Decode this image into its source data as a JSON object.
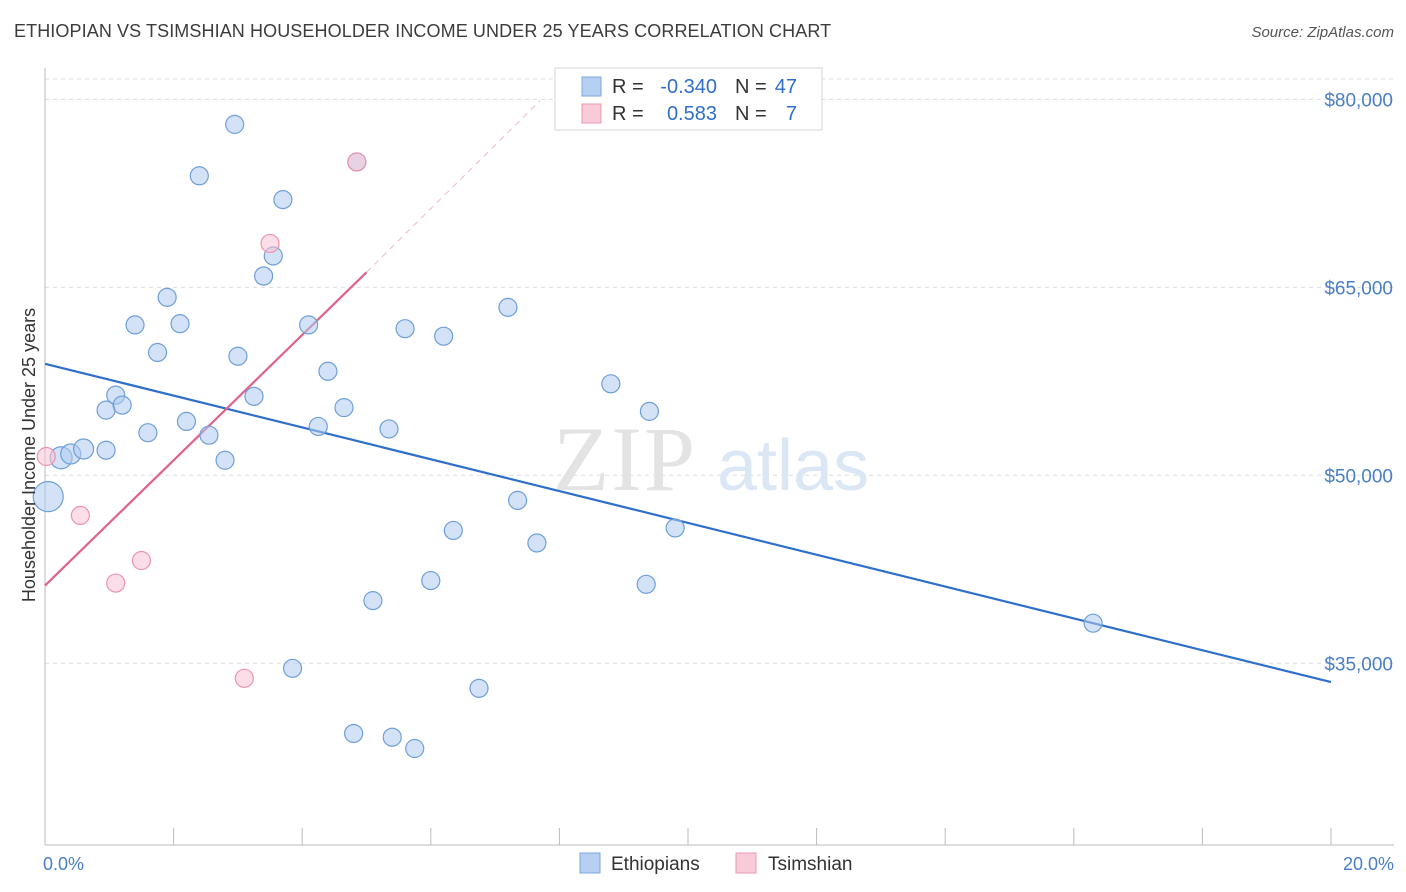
{
  "title": "ETHIOPIAN VS TSIMSHIAN HOUSEHOLDER INCOME UNDER 25 YEARS CORRELATION CHART",
  "source": "Source: ZipAtlas.com",
  "watermark": {
    "zip": "ZIP",
    "atlas": "atlas"
  },
  "legend_stats": {
    "r_label": "R =",
    "n_label": "N =",
    "rows": [
      {
        "series": "Ethiopians",
        "r": "-0.340",
        "n": "47"
      },
      {
        "series": "Tsimshian",
        "r": "0.583",
        "n": "7"
      }
    ]
  },
  "chart_data": {
    "type": "scatter",
    "ylabel": "Householder Income Under 25 years",
    "xlim": [
      0,
      20
    ],
    "ylim": [
      20500,
      82500
    ],
    "x_tick_labels": [
      {
        "value": 0,
        "label": "0.0%"
      },
      {
        "value": 20,
        "label": "20.0%"
      }
    ],
    "y_ticks": [
      {
        "value": 80000,
        "label": "$80,000"
      },
      {
        "value": 65000,
        "label": "$65,000"
      },
      {
        "value": 50000,
        "label": "$50,000"
      },
      {
        "value": 35000,
        "label": "$35,000"
      }
    ],
    "colors": {
      "Ethiopians": {
        "fill": "#aecbf0",
        "stroke": "#6f9fd8",
        "line": "#2f6fcb",
        "legend_fill": "#b5d0f3",
        "legend_stroke": "#7ea6de"
      },
      "Tsimshian": {
        "fill": "#f8c3d3",
        "stroke": "#ec94ad",
        "line": "#e0628a",
        "legend_fill": "#f9cad8",
        "legend_stroke": "#ec9ab2"
      },
      "tick_text": "#4a7ec9",
      "grid": "#dddddd"
    },
    "series": [
      {
        "name": "Ethiopians",
        "points": [
          [
            0.05,
            48300,
            15
          ],
          [
            0.25,
            51400,
            11
          ],
          [
            0.4,
            51700,
            10
          ],
          [
            0.6,
            52100,
            10
          ],
          [
            0.95,
            55200,
            9
          ],
          [
            0.95,
            52000,
            9
          ],
          [
            1.1,
            56400,
            9
          ],
          [
            1.2,
            55600,
            9
          ],
          [
            1.4,
            62000,
            9
          ],
          [
            1.6,
            53400,
            9
          ],
          [
            1.75,
            59800,
            9
          ],
          [
            1.9,
            64200,
            9
          ],
          [
            2.1,
            62100,
            9
          ],
          [
            2.2,
            54300,
            9
          ],
          [
            2.4,
            73900,
            9
          ],
          [
            2.55,
            53200,
            9
          ],
          [
            2.8,
            51200,
            9
          ],
          [
            2.95,
            78000,
            9
          ],
          [
            3.0,
            59500,
            9
          ],
          [
            3.25,
            56300,
            9
          ],
          [
            3.4,
            65900,
            9
          ],
          [
            3.55,
            67500,
            9
          ],
          [
            3.7,
            72000,
            9
          ],
          [
            3.85,
            34600,
            9
          ],
          [
            4.1,
            62000,
            9
          ],
          [
            4.25,
            53900,
            9
          ],
          [
            4.4,
            58300,
            9
          ],
          [
            4.65,
            55400,
            9
          ],
          [
            4.8,
            29400,
            9
          ],
          [
            4.85,
            75000,
            9
          ],
          [
            5.1,
            40000,
            9
          ],
          [
            5.35,
            53700,
            9
          ],
          [
            5.4,
            29100,
            9
          ],
          [
            5.6,
            61700,
            9
          ],
          [
            5.75,
            28200,
            9
          ],
          [
            6.0,
            41600,
            9
          ],
          [
            6.2,
            61100,
            9
          ],
          [
            6.35,
            45600,
            9
          ],
          [
            6.75,
            33000,
            9
          ],
          [
            7.2,
            63400,
            9
          ],
          [
            7.35,
            48000,
            9
          ],
          [
            7.65,
            44600,
            9
          ],
          [
            8.8,
            57300,
            9
          ],
          [
            9.35,
            41300,
            9
          ],
          [
            9.4,
            55100,
            9
          ],
          [
            9.8,
            45800,
            9
          ],
          [
            16.3,
            38200,
            9
          ]
        ]
      },
      {
        "name": "Tsimshian",
        "points": [
          [
            0.02,
            51500,
            9
          ],
          [
            0.55,
            46800,
            9
          ],
          [
            1.1,
            41400,
            9
          ],
          [
            1.5,
            43200,
            9
          ],
          [
            3.1,
            33800,
            9
          ],
          [
            3.5,
            68500,
            9
          ],
          [
            4.85,
            75000,
            9
          ]
        ]
      }
    ],
    "trend_lines": [
      {
        "series": "Ethiopians",
        "x": [
          0,
          20
        ],
        "y": [
          58900,
          33500
        ],
        "style": "solid"
      },
      {
        "series": "Tsimshian",
        "x": [
          0,
          5.0
        ],
        "y": [
          41200,
          66200
        ],
        "style": "solid"
      },
      {
        "series": "Tsimshian",
        "x": [
          5.0,
          7.7
        ],
        "y": [
          66200,
          79900
        ],
        "style": "dashed"
      }
    ],
    "legend_position": "bottom-center"
  }
}
